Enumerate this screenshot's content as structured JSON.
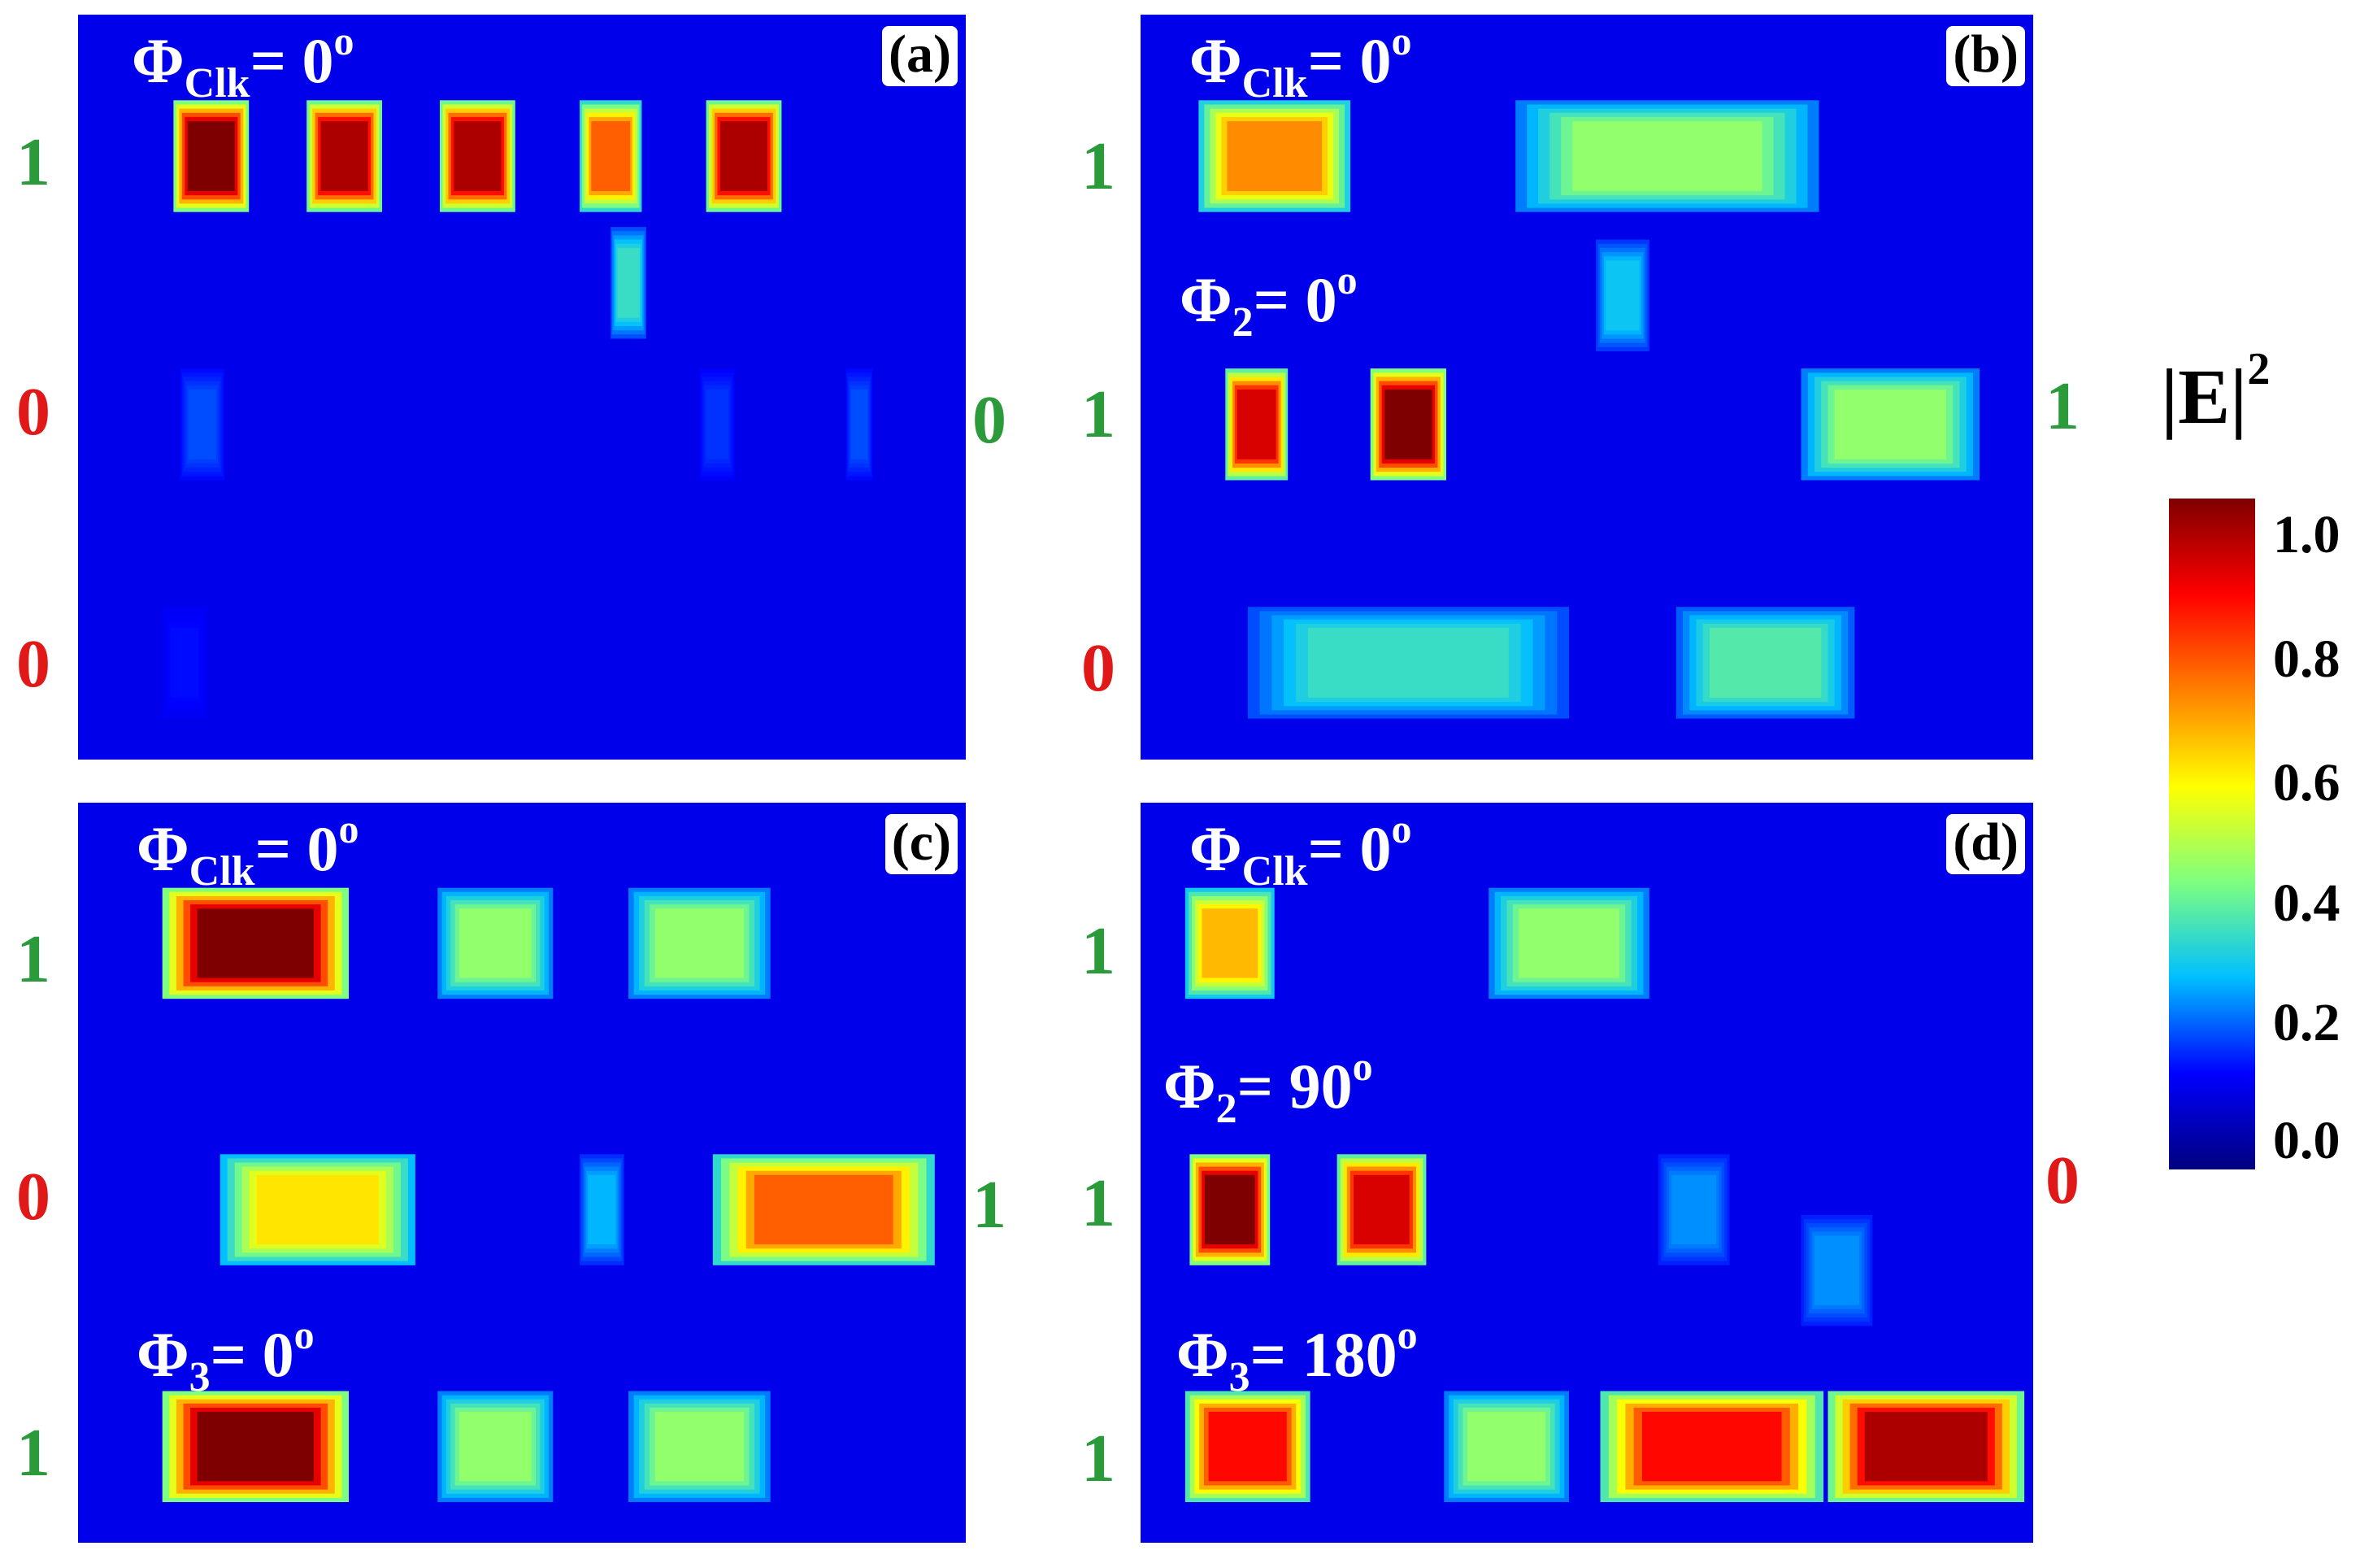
{
  "colorbar": {
    "title": "|E|",
    "title_power": "2",
    "ticks": [
      "1.0",
      "0.8",
      "0.6",
      "0.4",
      "0.2",
      "0.0"
    ],
    "colormap": [
      "#00007f",
      "#0000ff",
      "#00bfff",
      "#7fff7f",
      "#ffff00",
      "#ff7f00",
      "#ff0000",
      "#7f0000"
    ]
  },
  "panels": [
    {
      "id": "a",
      "tag": "(a)",
      "phases": [
        {
          "symbol": "Φ",
          "sub": "Clk",
          "value": "= 0",
          "deg": "o"
        }
      ],
      "inputs": [
        "1",
        "0",
        "0"
      ],
      "input_colors": [
        "green",
        "red",
        "red"
      ],
      "output": "0",
      "output_color": "green",
      "field": [
        {
          "row": 0,
          "x": 0.15,
          "w": 0.085,
          "intensity": 1.0
        },
        {
          "row": 0,
          "x": 0.3,
          "w": 0.085,
          "intensity": 0.95
        },
        {
          "row": 0,
          "x": 0.45,
          "w": 0.085,
          "intensity": 0.95
        },
        {
          "row": 0,
          "x": 0.6,
          "w": 0.07,
          "intensity": 0.75
        },
        {
          "row": 0,
          "x": 0.75,
          "w": 0.085,
          "intensity": 0.95
        },
        {
          "row": 1,
          "x": 0.14,
          "w": 0.05,
          "intensity": 0.2
        },
        {
          "row": 1,
          "x": 0.72,
          "w": 0.04,
          "intensity": 0.18
        },
        {
          "row": 1,
          "x": 0.88,
          "w": 0.03,
          "intensity": 0.2
        },
        {
          "row": 2,
          "x": 0.12,
          "w": 0.05,
          "intensity": 0.15
        },
        {
          "row": 2,
          "x": 0.48,
          "w": 0.08,
          "intensity": 0.12
        },
        {
          "row": 0.5,
          "x": 0.62,
          "w": 0.04,
          "intensity": 0.35
        }
      ]
    },
    {
      "id": "b",
      "tag": "(b)",
      "phases": [
        {
          "symbol": "Φ",
          "sub": "Clk",
          "value": "= 0",
          "deg": "o"
        },
        {
          "symbol": "Φ",
          "sub": "2",
          "value": "= 0",
          "deg": "o"
        }
      ],
      "inputs": [
        "1",
        "1",
        "0"
      ],
      "input_colors": [
        "green",
        "green",
        "red"
      ],
      "output": "1",
      "output_color": "green",
      "field": [
        {
          "row": 0,
          "x": 0.15,
          "w": 0.17,
          "intensity": 0.7
        },
        {
          "row": 0,
          "x": 0.59,
          "w": 0.34,
          "intensity": 0.45
        },
        {
          "row": 1,
          "x": 0.13,
          "w": 0.07,
          "intensity": 0.9
        },
        {
          "row": 1,
          "x": 0.3,
          "w": 0.085,
          "intensity": 1.0
        },
        {
          "row": 1,
          "x": 0.84,
          "w": 0.2,
          "intensity": 0.45
        },
        {
          "row": 2,
          "x": 0.3,
          "w": 0.36,
          "intensity": 0.35
        },
        {
          "row": 2,
          "x": 0.7,
          "w": 0.2,
          "intensity": 0.38
        },
        {
          "row": 0.55,
          "x": 0.54,
          "w": 0.06,
          "intensity": 0.3
        }
      ]
    },
    {
      "id": "c",
      "tag": "(c)",
      "phases": [
        {
          "symbol": "Φ",
          "sub": "Clk",
          "value": "= 0",
          "deg": "o"
        },
        {
          "symbol": "Φ",
          "sub": "3",
          "value": "= 0",
          "deg": "o"
        }
      ],
      "inputs": [
        "1",
        "0",
        "1"
      ],
      "input_colors": [
        "green",
        "red",
        "green"
      ],
      "output": "1",
      "output_color": "green",
      "field": [
        {
          "row": 0,
          "x": 0.2,
          "w": 0.21,
          "intensity": 1.0
        },
        {
          "row": 0,
          "x": 0.47,
          "w": 0.13,
          "intensity": 0.45
        },
        {
          "row": 0,
          "x": 0.7,
          "w": 0.16,
          "intensity": 0.45
        },
        {
          "row": 1,
          "x": 0.27,
          "w": 0.22,
          "intensity": 0.6
        },
        {
          "row": 1,
          "x": 0.84,
          "w": 0.25,
          "intensity": 0.75
        },
        {
          "row": 2,
          "x": 0.2,
          "w": 0.21,
          "intensity": 1.0
        },
        {
          "row": 2,
          "x": 0.47,
          "w": 0.13,
          "intensity": 0.45
        },
        {
          "row": 2,
          "x": 0.7,
          "w": 0.16,
          "intensity": 0.45
        },
        {
          "row": 1,
          "x": 0.59,
          "w": 0.05,
          "intensity": 0.28
        }
      ]
    },
    {
      "id": "d",
      "tag": "(d)",
      "phases": [
        {
          "symbol": "Φ",
          "sub": "Clk",
          "value": "= 0",
          "deg": "o"
        },
        {
          "symbol": "Φ",
          "sub": "2",
          "value": "= 90",
          "deg": "o"
        },
        {
          "symbol": "Φ",
          "sub": "3",
          "value": "= 180",
          "deg": "o"
        }
      ],
      "inputs": [
        "1",
        "1",
        "1"
      ],
      "input_colors": [
        "green",
        "green",
        "green"
      ],
      "output": "0",
      "output_color": "red",
      "field": [
        {
          "row": 0,
          "x": 0.1,
          "w": 0.1,
          "intensity": 0.65
        },
        {
          "row": 0,
          "x": 0.48,
          "w": 0.18,
          "intensity": 0.45
        },
        {
          "row": 1,
          "x": 0.1,
          "w": 0.09,
          "intensity": 1.0
        },
        {
          "row": 1,
          "x": 0.27,
          "w": 0.1,
          "intensity": 0.9
        },
        {
          "row": 1,
          "x": 0.62,
          "w": 0.08,
          "intensity": 0.25
        },
        {
          "row": 1.3,
          "x": 0.78,
          "w": 0.08,
          "intensity": 0.25
        },
        {
          "row": 2,
          "x": 0.12,
          "w": 0.14,
          "intensity": 0.85
        },
        {
          "row": 2,
          "x": 0.41,
          "w": 0.14,
          "intensity": 0.45
        },
        {
          "row": 2,
          "x": 0.64,
          "w": 0.25,
          "intensity": 0.85
        },
        {
          "row": 2,
          "x": 0.88,
          "w": 0.22,
          "intensity": 0.95
        }
      ]
    }
  ]
}
